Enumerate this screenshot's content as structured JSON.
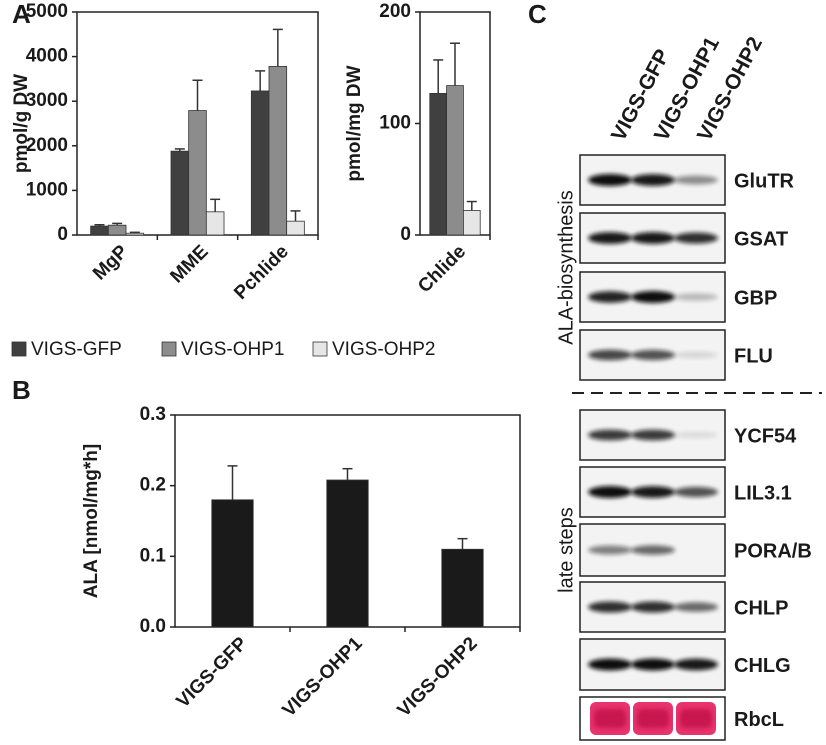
{
  "panel_labels": [
    "A",
    "B",
    "C"
  ],
  "chart_data": [
    {
      "type": "bar",
      "ylabel": "pmol/g DW",
      "categories": [
        "MgP",
        "MME",
        "Pchlide"
      ],
      "series": [
        {
          "name": "VIGS-GFP",
          "color": "#404040",
          "values": [
            200,
            1880,
            3230
          ],
          "errors": [
            30,
            50,
            450
          ]
        },
        {
          "name": "VIGS-OHP1",
          "color": "#8c8c8c",
          "values": [
            220,
            2790,
            3780
          ],
          "errors": [
            40,
            680,
            830
          ]
        },
        {
          "name": "VIGS-OHP2",
          "color": "#e6e6e6",
          "values": [
            40,
            520,
            310
          ],
          "errors": [
            20,
            280,
            230
          ]
        }
      ],
      "ylim": [
        0,
        5000
      ],
      "yticks": [
        0,
        1000,
        2000,
        3000,
        4000,
        5000
      ]
    },
    {
      "type": "bar",
      "ylabel": "pmol/mg DW",
      "categories": [
        "Chlide"
      ],
      "series": [
        {
          "name": "VIGS-GFP",
          "color": "#404040",
          "values": [
            127
          ],
          "errors": [
            30
          ]
        },
        {
          "name": "VIGS-OHP1",
          "color": "#8c8c8c",
          "values": [
            134
          ],
          "errors": [
            38
          ]
        },
        {
          "name": "VIGS-OHP2",
          "color": "#e6e6e6",
          "values": [
            22
          ],
          "errors": [
            8
          ]
        }
      ],
      "ylim": [
        0,
        200
      ],
      "yticks": [
        0,
        100,
        200
      ]
    },
    {
      "type": "bar",
      "ylabel": "ALA [nmol/mg*h]",
      "categories": [
        "VIGS-GFP",
        "VIGS-OHP1",
        "VIGS-OHP2"
      ],
      "series": [
        {
          "name": "ALA",
          "color": "#1a1a1a",
          "values": [
            0.18,
            0.208,
            0.11
          ],
          "errors": [
            0.048,
            0.016,
            0.015
          ]
        }
      ],
      "ylim": [
        0,
        0.3
      ],
      "yticks": [
        {
          "value": 0,
          "label": "0.0"
        },
        0.1,
        0.2,
        0.3
      ]
    }
  ],
  "blots": {
    "lanes": [
      "VIGS-GFP",
      "VIGS-OHP1",
      "VIGS-OHP2"
    ],
    "groups": [
      {
        "label": "ALA-biosynthesis",
        "proteins": [
          "GluTR",
          "GSAT",
          "GBP",
          "FLU"
        ]
      },
      {
        "label": "late steps",
        "proteins": [
          "YCF54",
          "LIL3.1",
          "PORA/B",
          "CHLP",
          "CHLG",
          "RbcL"
        ]
      }
    ]
  }
}
